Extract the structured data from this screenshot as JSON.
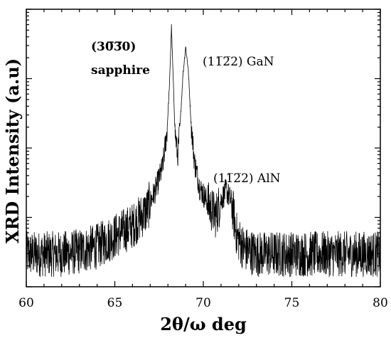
{
  "chart_data": {
    "type": "line",
    "xlabel": "2θ/ω deg",
    "ylabel": "XRD Intensity (a.u)",
    "xlim": [
      60,
      80
    ],
    "x_ticks": [
      "60",
      "65",
      "70",
      "75",
      "80"
    ],
    "ylim": [
      0,
      1
    ],
    "y_scale": "log",
    "y_tick_labels_shown": false,
    "grid": false,
    "legend": "none",
    "line_color": "#000000",
    "annotations": [
      {
        "id": "sapphire",
        "text_lines": [
          "(30̅3̅0)",
          "sapphire"
        ],
        "x": 68.2
      },
      {
        "id": "gan",
        "text": "(11̅2̅2) GaN",
        "x": 69.0
      },
      {
        "id": "aln",
        "text": "(11̅2̅2) AlN",
        "x": 71.3
      }
    ],
    "series": [
      {
        "x": [
          60.0,
          61.0,
          62.0,
          63.0,
          64.0,
          65.0,
          66.0,
          66.8,
          67.3,
          67.7,
          67.95,
          68.1,
          68.2,
          68.3,
          68.4,
          68.55,
          68.7,
          68.85,
          69.0,
          69.15,
          69.3,
          69.5,
          69.8,
          70.1,
          70.4,
          70.7,
          71.0,
          71.3,
          71.6,
          71.9,
          72.3,
          73.0,
          75.0,
          77.0,
          80.0
        ],
        "values": [
          0.1,
          0.1,
          0.1,
          0.11,
          0.13,
          0.17,
          0.21,
          0.27,
          0.35,
          0.44,
          0.58,
          0.78,
          0.99,
          0.78,
          0.58,
          0.48,
          0.62,
          0.8,
          0.91,
          0.82,
          0.62,
          0.46,
          0.36,
          0.32,
          0.28,
          0.25,
          0.31,
          0.35,
          0.3,
          0.17,
          0.12,
          0.1,
          0.1,
          0.1,
          0.1
        ]
      }
    ]
  }
}
